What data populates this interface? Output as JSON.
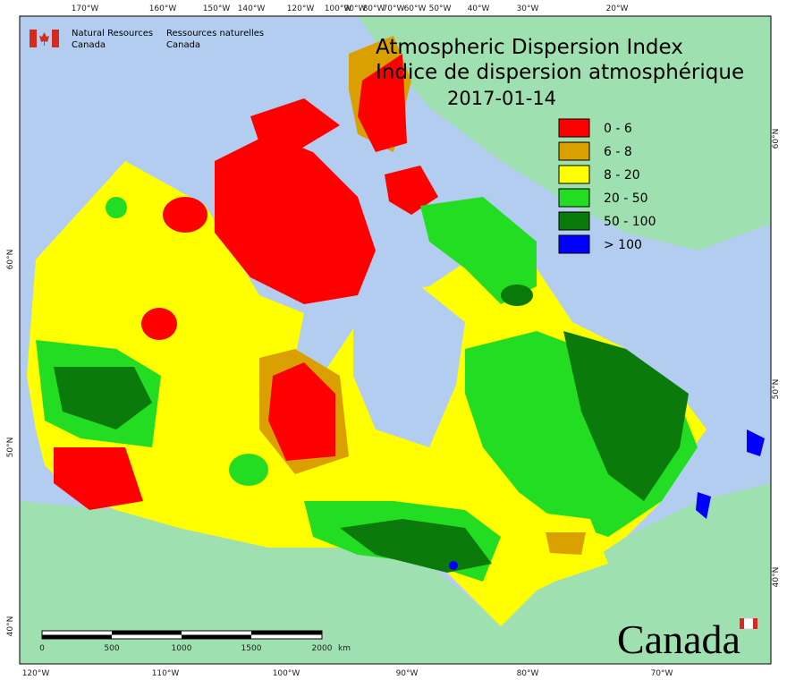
{
  "agency": {
    "en": [
      "Natural Resources",
      "Canada"
    ],
    "fr": [
      "Ressources naturelles",
      "Canada"
    ]
  },
  "title": [
    "Atmospheric Dispersion Index",
    "Indice de dispersion atmosphérique"
  ],
  "date": "2017-01-14",
  "legend": [
    {
      "label": "0 - 6",
      "color": "#ff0000"
    },
    {
      "label": "6 - 8",
      "color": "#d9a000"
    },
    {
      "label": "8 - 20",
      "color": "#ffff00"
    },
    {
      "label": "20 - 50",
      "color": "#22dd22"
    },
    {
      "label": "50 - 100",
      "color": "#0a7a0a"
    },
    {
      "label": "> 100",
      "color": "#0000ff"
    }
  ],
  "graticule": {
    "top": [
      "170°W",
      "160°W",
      "150°W",
      "140°W",
      "120°W",
      "100°W",
      "90°W",
      "80°W",
      "70°W",
      "60°W",
      "50°W",
      "40°W",
      "30°W",
      "20°W"
    ],
    "bottom": [
      "120°W",
      "110°W",
      "100°W",
      "90°W",
      "80°W",
      "70°W"
    ],
    "left": [
      "60°N",
      "50°N",
      "40°N"
    ],
    "right": [
      "60°N",
      "50°N",
      "40°N"
    ]
  },
  "scale_bar": {
    "labels": [
      "0",
      "500",
      "1000",
      "1500",
      "2000"
    ],
    "unit": "km"
  },
  "wordmark": "Canada"
}
